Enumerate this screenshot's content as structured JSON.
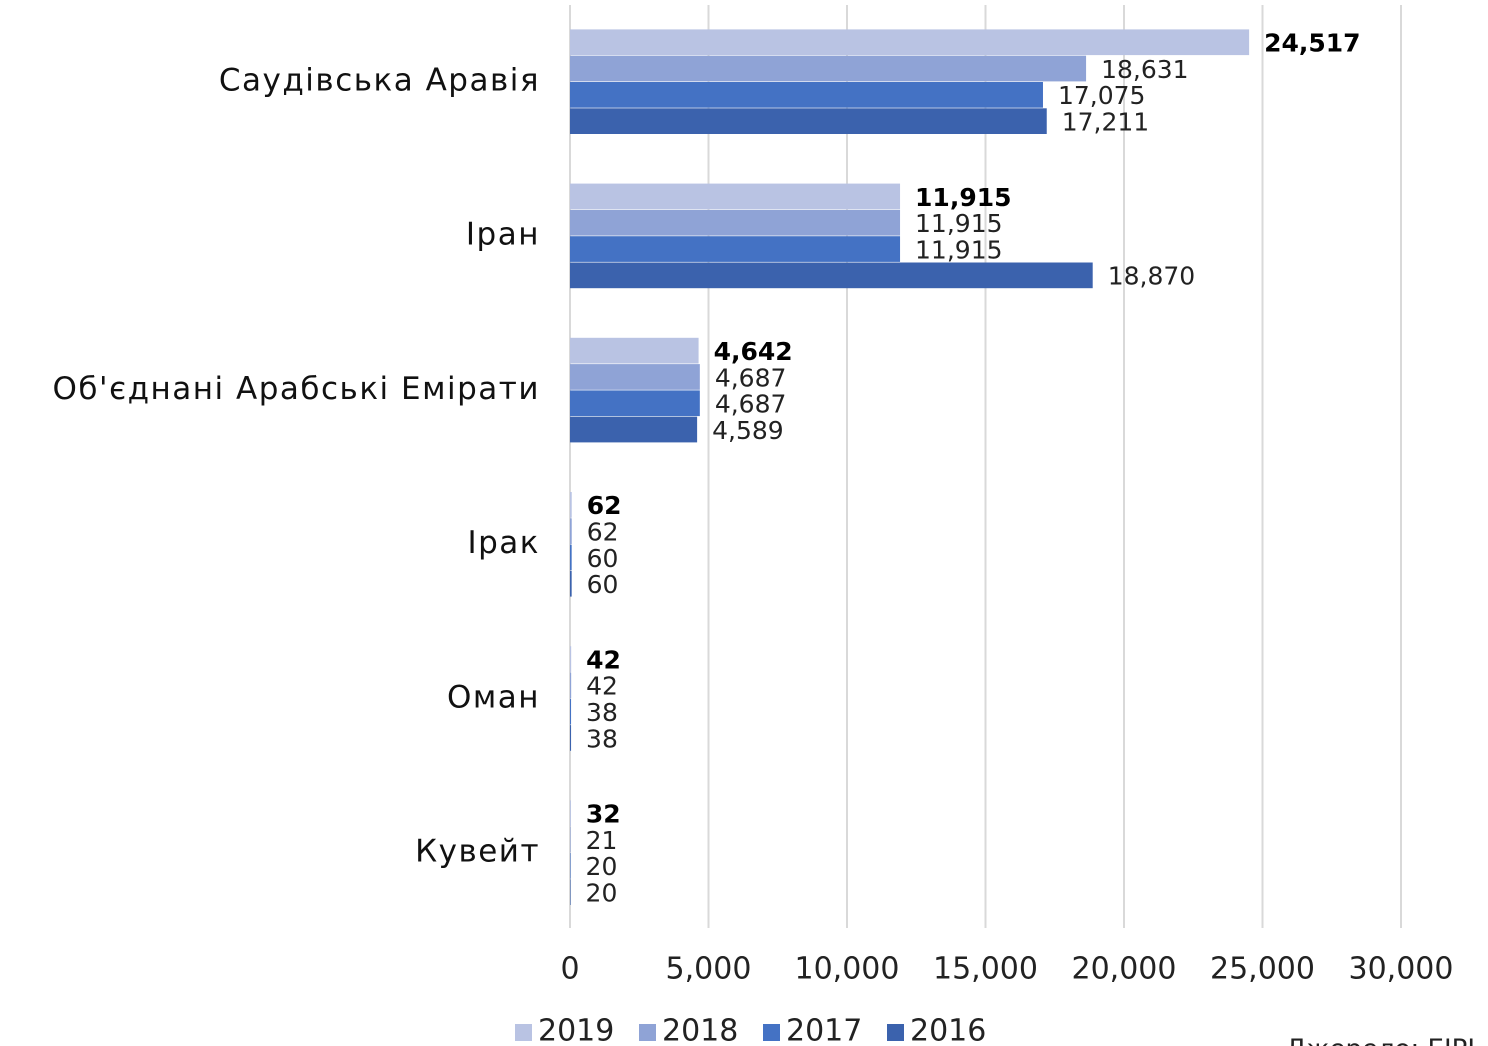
{
  "chart_data": {
    "type": "bar",
    "orientation": "horizontal",
    "categories": [
      "Саудівська Аравія",
      "Іран",
      "Об'єднані Арабські Емірати",
      "Ірак",
      "Оман",
      "Кувейт"
    ],
    "series": [
      {
        "name": "2019",
        "color": "#b9c3e3",
        "values": [
          24517,
          11915,
          4642,
          62,
          42,
          32
        ],
        "value_labels": [
          "24,517",
          "11,915",
          "4,642",
          "62",
          "42",
          "32"
        ]
      },
      {
        "name": "2018",
        "color": "#8fa3d6",
        "values": [
          18631,
          11915,
          4687,
          62,
          42,
          21
        ],
        "value_labels": [
          "18,631",
          "11,915",
          "4,687",
          "62",
          "42",
          "21"
        ]
      },
      {
        "name": "2017",
        "color": "#4472c4",
        "values": [
          17075,
          11915,
          4687,
          60,
          38,
          20
        ],
        "value_labels": [
          "17,075",
          "11,915",
          "4,687",
          "60",
          "38",
          "20"
        ]
      },
      {
        "name": "2016",
        "color": "#3b62ad",
        "values": [
          17211,
          18870,
          4589,
          60,
          38,
          20
        ],
        "value_labels": [
          "17,211",
          "18,870",
          "4,589",
          "60",
          "38",
          "20"
        ]
      }
    ],
    "xlim": [
      0,
      30000
    ],
    "xticks": [
      0,
      {
        "value": 5000,
        "label": "5,000"
      },
      {
        "value": 10000,
        "label": "10,000"
      },
      {
        "value": 15000,
        "label": "15,000"
      },
      {
        "value": 20000,
        "label": "20,000"
      },
      {
        "value": 25000,
        "label": "25,000"
      },
      {
        "value": 30000,
        "label": "30,000"
      }
    ],
    "grid": true,
    "legend": "bottom",
    "source": "Джерело: EIPI"
  }
}
